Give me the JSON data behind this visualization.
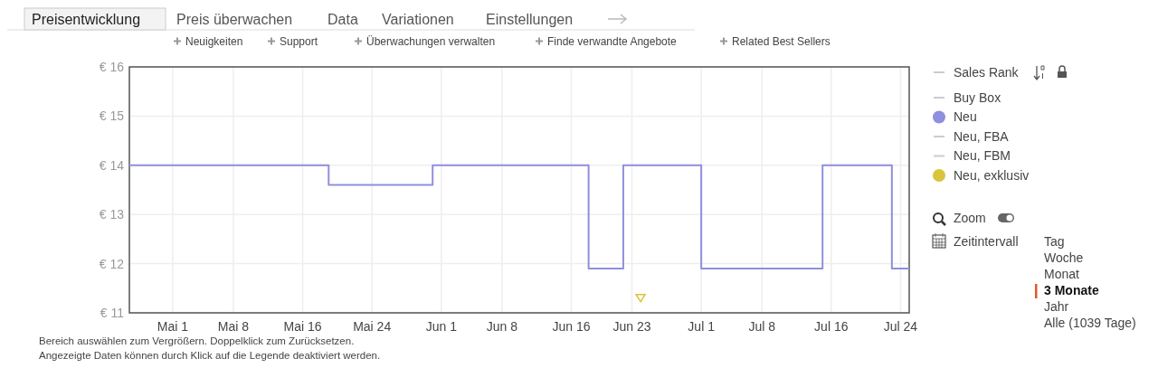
{
  "chart_data": {
    "type": "step",
    "xlim": [
      "--04-26",
      "--07-25"
    ],
    "xticks": [
      {
        "value": "--05-01",
        "label": "Mai 1"
      },
      {
        "value": "--05-08",
        "label": "Mai 8"
      },
      {
        "value": "--05-16",
        "label": "Mai 16"
      },
      {
        "value": "--05-24",
        "label": "Mai 24"
      },
      {
        "value": "--06-01",
        "label": "Jun 1"
      },
      {
        "value": "--06-08",
        "label": "Jun 8"
      },
      {
        "value": "--06-16",
        "label": "Jun 16"
      },
      {
        "value": "--06-23",
        "label": "Jun 23"
      },
      {
        "value": "--07-01",
        "label": "Jul 1"
      },
      {
        "value": "--07-08",
        "label": "Jul 8"
      },
      {
        "value": "--07-16",
        "label": "Jul 16"
      },
      {
        "value": "--07-24",
        "label": "Jul 24"
      }
    ],
    "ylim": [
      11,
      16
    ],
    "yticks": [
      {
        "value": 11,
        "label": "€ 11"
      },
      {
        "value": 12,
        "label": "€ 12"
      },
      {
        "value": 13,
        "label": "€ 13"
      },
      {
        "value": 14,
        "label": "€ 14"
      },
      {
        "value": 15,
        "label": "€ 15"
      },
      {
        "value": 16,
        "label": "€ 16"
      }
    ],
    "grid": true,
    "legend": "right",
    "series": [
      {
        "name": "Sales Rank",
        "color": "#cccccc"
      },
      {
        "name": "Buy Box",
        "color": "#cccccc"
      },
      {
        "name": "Neu",
        "color": "#8f8fdf",
        "x": [
          "--04-26",
          "--05-19",
          "--05-31",
          "--06-18",
          "--06-22",
          "--07-01",
          "--07-15",
          "--07-23",
          "--07-25"
        ],
        "values": [
          14,
          13.6,
          14,
          11.9,
          14,
          11.9,
          14,
          11.9,
          11.9
        ]
      },
      {
        "name": "Neu, FBA",
        "color": "#cccccc"
      },
      {
        "name": "Neu, FBM",
        "color": "#cccccc"
      },
      {
        "name": "Neu, exklusiv",
        "type": "scatter",
        "marker": "triangle",
        "color": "#d9c43c",
        "x": [
          "--06-24"
        ],
        "values": [
          11.3
        ]
      }
    ],
    "annotations": [
      "Preisentwicklung",
      "Preis überwachen",
      "Data",
      "Variationen",
      "Einstellungen",
      "Neuigkeiten",
      "Support",
      "Überwachungen verwalten",
      "Finde verwandte Angebote",
      "Related Best Sellers",
      "Zoom",
      "Zeitintervall",
      "Tag",
      "Woche",
      "Monat",
      "3 Monate",
      "Jahr",
      "Alle (1039 Tage)",
      "Bereich auswählen zum Vergrößern. Doppelklick zum Zurücksetzen.",
      "Angezeigte Daten können durch Klick auf die Legende deaktiviert werden."
    ]
  }
}
